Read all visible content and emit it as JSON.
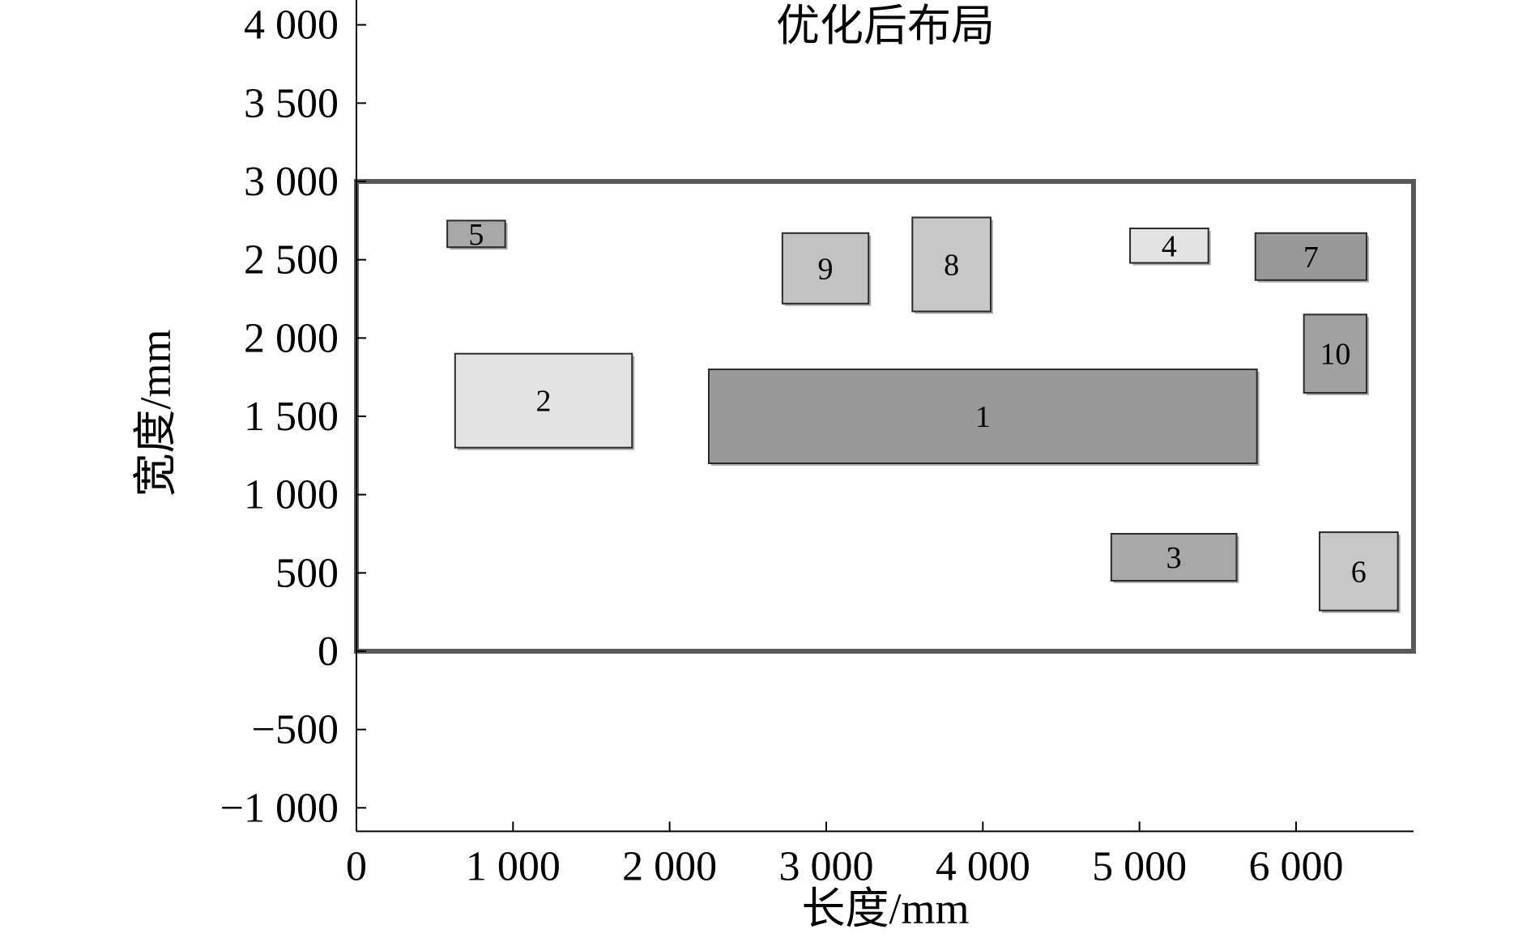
{
  "chart_data": {
    "type": "layout",
    "title": "优化后布局",
    "xlabel": "长度/mm",
    "ylabel": "宽度/mm",
    "xlim": [
      0,
      6750
    ],
    "ylim": [
      -1150,
      4150
    ],
    "x_ticks": [
      {
        "value": 0,
        "label": "0"
      },
      {
        "value": 1000,
        "label": "1 000"
      },
      {
        "value": 2000,
        "label": "2 000"
      },
      {
        "value": 3000,
        "label": "3 000"
      },
      {
        "value": 4000,
        "label": "4 000"
      },
      {
        "value": 5000,
        "label": "5 000"
      },
      {
        "value": 6000,
        "label": "6 000"
      }
    ],
    "y_ticks": [
      {
        "value": -1000,
        "label": "−1 000"
      },
      {
        "value": -500,
        "label": "−500"
      },
      {
        "value": 0,
        "label": "0"
      },
      {
        "value": 500,
        "label": "500"
      },
      {
        "value": 1000,
        "label": "1 000"
      },
      {
        "value": 1500,
        "label": "1 500"
      },
      {
        "value": 2000,
        "label": "2 000"
      },
      {
        "value": 2500,
        "label": "2 500"
      },
      {
        "value": 3000,
        "label": "3 000"
      },
      {
        "value": 3500,
        "label": "3 500"
      },
      {
        "value": 4000,
        "label": "4 000"
      }
    ],
    "boundary": {
      "x0": 0,
      "y0": 0,
      "x1": 6750,
      "y1": 3000,
      "color": "#595959"
    },
    "rects": [
      {
        "label": "1",
        "x0": 2250,
        "y0": 1200,
        "x1": 5750,
        "y1": 1800,
        "fill": "#999999"
      },
      {
        "label": "2",
        "x0": 630,
        "y0": 1300,
        "x1": 1760,
        "y1": 1900,
        "fill": "#e3e3e3"
      },
      {
        "label": "3",
        "x0": 4820,
        "y0": 450,
        "x1": 5620,
        "y1": 750,
        "fill": "#a8a8a8"
      },
      {
        "label": "4",
        "x0": 4940,
        "y0": 2480,
        "x1": 5440,
        "y1": 2700,
        "fill": "#e3e3e3"
      },
      {
        "label": "5",
        "x0": 580,
        "y0": 2580,
        "x1": 950,
        "y1": 2750,
        "fill": "#a8a8a8"
      },
      {
        "label": "6",
        "x0": 6150,
        "y0": 260,
        "x1": 6650,
        "y1": 760,
        "fill": "#c7c7c7"
      },
      {
        "label": "7",
        "x0": 5740,
        "y0": 2370,
        "x1": 6450,
        "y1": 2670,
        "fill": "#999999"
      },
      {
        "label": "8",
        "x0": 3550,
        "y0": 2170,
        "x1": 4050,
        "y1": 2770,
        "fill": "#c7c7c7"
      },
      {
        "label": "9",
        "x0": 2720,
        "y0": 2220,
        "x1": 3270,
        "y1": 2670,
        "fill": "#c2c2c2"
      },
      {
        "label": "10",
        "x0": 6050,
        "y0": 1650,
        "x1": 6450,
        "y1": 2150,
        "fill": "#a1a1a1"
      }
    ]
  }
}
